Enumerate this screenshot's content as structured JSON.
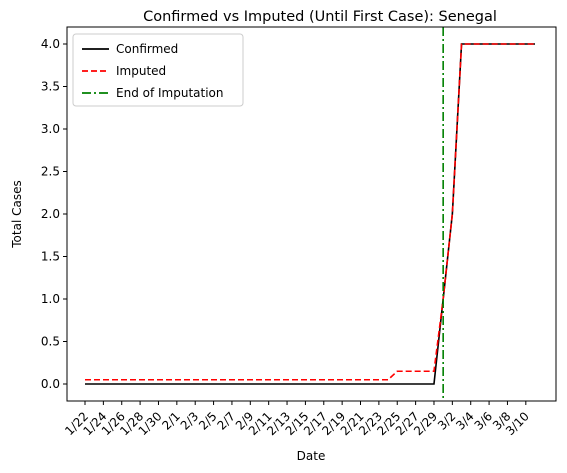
{
  "chart_data": {
    "type": "line",
    "title": "Confirmed vs Imputed (Until First Case): Senegal",
    "xlabel": "Date",
    "ylabel": "Total Cases",
    "x": [
      "1/22",
      "1/23",
      "1/24",
      "1/25",
      "1/26",
      "1/27",
      "1/28",
      "1/29",
      "1/30",
      "1/31",
      "2/1",
      "2/2",
      "2/3",
      "2/4",
      "2/5",
      "2/6",
      "2/7",
      "2/8",
      "2/9",
      "2/10",
      "2/11",
      "2/12",
      "2/13",
      "2/14",
      "2/15",
      "2/16",
      "2/17",
      "2/18",
      "2/19",
      "2/20",
      "2/21",
      "2/22",
      "2/23",
      "2/24",
      "2/25",
      "2/26",
      "2/27",
      "2/28",
      "2/29",
      "3/1",
      "3/2",
      "3/3",
      "3/4",
      "3/5",
      "3/6",
      "3/7",
      "3/8",
      "3/9",
      "3/10",
      "3/11"
    ],
    "x_tick_labels": [
      "1/22",
      "1/24",
      "1/26",
      "1/28",
      "1/30",
      "2/1",
      "2/3",
      "2/5",
      "2/7",
      "2/9",
      "2/11",
      "2/13",
      "2/15",
      "2/17",
      "2/19",
      "2/21",
      "2/23",
      "2/25",
      "2/27",
      "2/29",
      "3/2",
      "3/4",
      "3/6",
      "3/8",
      "3/10"
    ],
    "ylim": [
      -0.2,
      4.2
    ],
    "y_ticks": [
      0.0,
      0.5,
      1.0,
      1.5,
      2.0,
      2.5,
      3.0,
      3.5,
      4.0
    ],
    "y_tick_labels": [
      "0.0",
      "0.5",
      "1.0",
      "1.5",
      "2.0",
      "2.5",
      "3.0",
      "3.5",
      "4.0"
    ],
    "series": [
      {
        "name": "Confirmed",
        "color": "#000000",
        "style": "solid",
        "values": [
          0,
          0,
          0,
          0,
          0,
          0,
          0,
          0,
          0,
          0,
          0,
          0,
          0,
          0,
          0,
          0,
          0,
          0,
          0,
          0,
          0,
          0,
          0,
          0,
          0,
          0,
          0,
          0,
          0,
          0,
          0,
          0,
          0,
          0,
          0,
          0,
          0,
          0,
          0,
          1,
          2,
          4,
          4,
          4,
          4,
          4,
          4,
          4,
          4,
          4
        ]
      },
      {
        "name": "Imputed",
        "color": "#ff0000",
        "style": "dashed",
        "values": [
          0.05,
          0.05,
          0.05,
          0.05,
          0.05,
          0.05,
          0.05,
          0.05,
          0.05,
          0.05,
          0.05,
          0.05,
          0.05,
          0.05,
          0.05,
          0.05,
          0.05,
          0.05,
          0.05,
          0.05,
          0.05,
          0.05,
          0.05,
          0.05,
          0.05,
          0.05,
          0.05,
          0.05,
          0.05,
          0.05,
          0.05,
          0.05,
          0.05,
          0.05,
          0.15,
          0.15,
          0.15,
          0.15,
          0.15,
          1,
          2,
          4,
          4,
          4,
          4,
          4,
          4,
          4,
          4,
          4
        ]
      }
    ],
    "vline": {
      "name": "End of Imputation",
      "x": "3/1",
      "color": "#008000",
      "style": "dashdot"
    },
    "legend_position": "top-left",
    "grid": false
  }
}
